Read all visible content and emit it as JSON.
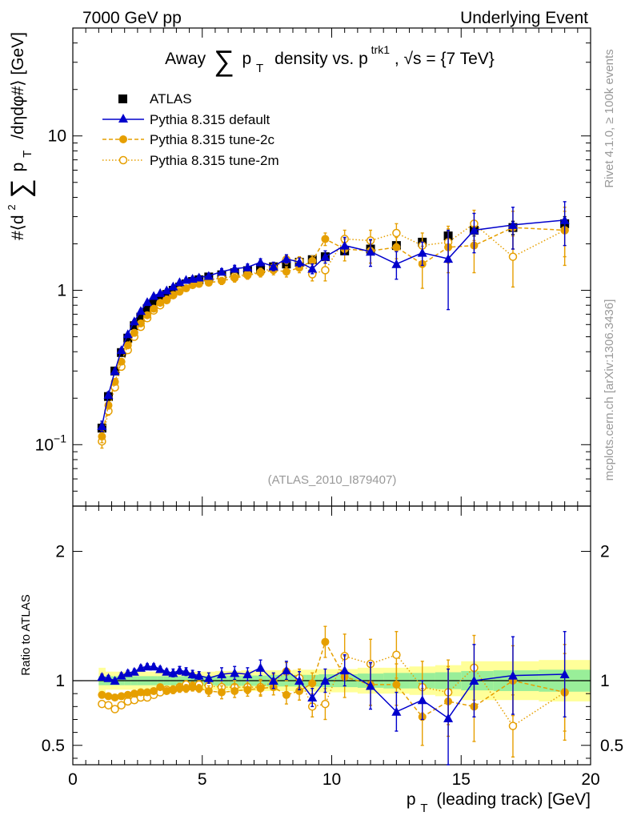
{
  "header": {
    "left": "7000 GeV pp",
    "right": "Underlying Event"
  },
  "side_labels": {
    "rivet": "Rivet 4.1.0, ≥ 100k events",
    "mcplots": "mcplots.cern.ch [arXiv:1306.3436]"
  },
  "colors": {
    "atlas": "#000000",
    "default": "#0000cc",
    "tune2c": "#e69f00",
    "tune2m": "#e69f00",
    "band_outer": "#ffff99",
    "band_inner": "#99ee99",
    "watermark": "#999999"
  },
  "chart_data": [
    {
      "type": "scatter",
      "panel": "main",
      "title": "Away ∑ pT density vs. pT trk1, √s = {7 TeV}",
      "title_parts": {
        "prefix": "Away",
        "sum": "∑",
        "p": "p",
        "sub": "T",
        "mid": "density vs. p",
        "sup": "trk1",
        "suffix": ", √s = {7 TeV}"
      },
      "ylabel": "#⟨d² ∑ pT /dηdφ#⟩ [GeV]",
      "ylabel_parts": {
        "a": "#⟨d",
        "sup": "2",
        "sum": "∑",
        "p": "p",
        "sub": "T",
        "b": "/dηdφ#⟩ [GeV]"
      },
      "yscale": "log",
      "ylim": [
        0.04,
        50
      ],
      "xlim": [
        0,
        20
      ],
      "yticks": [
        {
          "v": 0.1,
          "base": "10",
          "exp": "−1"
        },
        {
          "v": 1,
          "base": "1",
          "exp": ""
        },
        {
          "v": 10,
          "base": "10",
          "exp": ""
        }
      ],
      "watermark": "(ATLAS_2010_I879407)",
      "legend": [
        "ATLAS",
        "Pythia 8.315 default",
        "Pythia 8.315 tune-2c",
        "Pythia 8.315 tune-2m"
      ],
      "x": [
        1.125,
        1.375,
        1.625,
        1.875,
        2.125,
        2.375,
        2.625,
        2.875,
        3.125,
        3.375,
        3.625,
        3.875,
        4.125,
        4.375,
        4.625,
        4.875,
        5.25,
        5.75,
        6.25,
        6.75,
        7.25,
        7.75,
        8.25,
        8.75,
        9.25,
        9.75,
        10.5,
        11.5,
        12.5,
        13.5,
        14.5,
        15.5,
        17.0,
        19.0
      ],
      "series": [
        {
          "name": "ATLAS",
          "style": "square",
          "values": [
            0.128,
            0.205,
            0.3,
            0.395,
            0.49,
            0.59,
            0.67,
            0.76,
            0.83,
            0.88,
            0.94,
            1.0,
            1.05,
            1.1,
            1.14,
            1.17,
            1.22,
            1.26,
            1.3,
            1.34,
            1.38,
            1.42,
            1.48,
            1.52,
            1.58,
            1.65,
            1.8,
            1.85,
            1.95,
            2.05,
            2.25,
            2.45,
            2.55,
            2.7
          ],
          "errors": [
            0.01,
            0.01,
            0.01,
            0.01,
            0.01,
            0.01,
            0.01,
            0.01,
            0.01,
            0.01,
            0.01,
            0.01,
            0.02,
            0.02,
            0.02,
            0.02,
            0.02,
            0.03,
            0.03,
            0.03,
            0.03,
            0.04,
            0.04,
            0.05,
            0.05,
            0.06,
            0.07,
            0.08,
            0.1,
            0.12,
            0.15,
            0.2,
            0.25,
            0.3
          ]
        },
        {
          "name": "Pythia 8.315 default",
          "style": "triangle",
          "values": [
            0.132,
            0.21,
            0.3,
            0.41,
            0.52,
            0.63,
            0.735,
            0.84,
            0.92,
            0.96,
            1.0,
            1.06,
            1.13,
            1.17,
            1.19,
            1.21,
            1.24,
            1.32,
            1.38,
            1.41,
            1.52,
            1.43,
            1.6,
            1.52,
            1.38,
            1.65,
            1.95,
            1.78,
            1.48,
            1.75,
            1.6,
            2.45,
            2.65,
            2.85
          ],
          "errors": [
            0.01,
            0.01,
            0.01,
            0.01,
            0.01,
            0.01,
            0.02,
            0.02,
            0.02,
            0.02,
            0.02,
            0.03,
            0.03,
            0.03,
            0.04,
            0.04,
            0.05,
            0.06,
            0.07,
            0.07,
            0.08,
            0.09,
            0.1,
            0.1,
            0.1,
            0.15,
            0.25,
            0.35,
            0.3,
            0.3,
            0.85,
            0.7,
            0.8,
            0.9
          ]
        },
        {
          "name": "Pythia 8.315 tune-2c",
          "style": "circle-filled",
          "values": [
            0.113,
            0.18,
            0.255,
            0.345,
            0.44,
            0.53,
            0.61,
            0.69,
            0.76,
            0.83,
            0.86,
            0.93,
            0.98,
            1.03,
            1.08,
            1.1,
            1.12,
            1.15,
            1.2,
            1.25,
            1.3,
            1.35,
            1.32,
            1.4,
            1.55,
            2.15,
            1.85,
            1.8,
            1.9,
            1.48,
            1.9,
            1.95,
            2.55,
            2.45
          ],
          "errors": [
            0.01,
            0.01,
            0.01,
            0.01,
            0.01,
            0.01,
            0.01,
            0.02,
            0.02,
            0.02,
            0.02,
            0.03,
            0.03,
            0.03,
            0.04,
            0.04,
            0.05,
            0.06,
            0.07,
            0.07,
            0.08,
            0.09,
            0.1,
            0.1,
            0.12,
            0.2,
            0.3,
            0.3,
            0.3,
            0.45,
            0.6,
            0.65,
            0.7,
            1.0
          ]
        },
        {
          "name": "Pythia 8.315 tune-2m",
          "style": "circle-open",
          "values": [
            0.105,
            0.165,
            0.235,
            0.32,
            0.41,
            0.5,
            0.58,
            0.66,
            0.74,
            0.8,
            0.87,
            0.93,
            1.0,
            1.07,
            1.1,
            1.14,
            1.17,
            1.2,
            1.23,
            1.27,
            1.31,
            1.4,
            1.58,
            1.55,
            1.27,
            1.35,
            2.15,
            2.1,
            2.35,
            1.95,
            2.05,
            2.7,
            1.65,
            2.45
          ],
          "errors": [
            0.01,
            0.01,
            0.01,
            0.01,
            0.01,
            0.01,
            0.01,
            0.02,
            0.02,
            0.02,
            0.02,
            0.03,
            0.03,
            0.03,
            0.04,
            0.04,
            0.05,
            0.06,
            0.07,
            0.07,
            0.08,
            0.09,
            0.1,
            0.1,
            0.12,
            0.2,
            0.3,
            0.35,
            0.35,
            0.4,
            0.55,
            0.6,
            0.6,
            0.8
          ]
        }
      ]
    },
    {
      "type": "scatter",
      "panel": "ratio",
      "ylabel": "Ratio to ATLAS",
      "xlabel": "pT (leading track) [GeV]",
      "xlabel_parts": {
        "p": "p",
        "sub": "T",
        "rest": "(leading track) [GeV]"
      },
      "xlim": [
        0,
        20
      ],
      "ylim": [
        0.35,
        2.35
      ],
      "xticks": [
        0,
        5,
        10,
        15,
        20
      ],
      "yticks": [
        0.5,
        1,
        2
      ],
      "ytick_labels": [
        "0.5",
        "1",
        "2"
      ],
      "band_inner": [
        0.035,
        0.035,
        0.035,
        0.035,
        0.035,
        0.035,
        0.035,
        0.035,
        0.035,
        0.035,
        0.035,
        0.035,
        0.035,
        0.035,
        0.035,
        0.035,
        0.035,
        0.04,
        0.04,
        0.04,
        0.04,
        0.045,
        0.045,
        0.045,
        0.045,
        0.05,
        0.05,
        0.055,
        0.06,
        0.06,
        0.065,
        0.075,
        0.08,
        0.085
      ],
      "band_outer": [
        0.1,
        0.07,
        0.07,
        0.07,
        0.07,
        0.07,
        0.07,
        0.07,
        0.07,
        0.07,
        0.07,
        0.07,
        0.07,
        0.07,
        0.07,
        0.07,
        0.07,
        0.075,
        0.075,
        0.08,
        0.08,
        0.08,
        0.08,
        0.085,
        0.085,
        0.09,
        0.09,
        0.1,
        0.1,
        0.11,
        0.12,
        0.15,
        0.15,
        0.16
      ],
      "series": [
        {
          "name": "Pythia 8.315 default",
          "style": "triangle",
          "values": [
            1.03,
            1.02,
            1.0,
            1.04,
            1.06,
            1.07,
            1.1,
            1.11,
            1.11,
            1.09,
            1.07,
            1.06,
            1.08,
            1.07,
            1.05,
            1.04,
            1.02,
            1.05,
            1.06,
            1.05,
            1.1,
            1.0,
            1.08,
            1.0,
            0.87,
            1.0,
            1.08,
            0.96,
            0.76,
            0.85,
            0.71,
            1.0,
            1.04,
            1.05
          ],
          "errors": [
            0.02,
            0.02,
            0.02,
            0.02,
            0.02,
            0.02,
            0.02,
            0.02,
            0.02,
            0.02,
            0.02,
            0.03,
            0.03,
            0.03,
            0.03,
            0.03,
            0.04,
            0.05,
            0.05,
            0.05,
            0.06,
            0.06,
            0.07,
            0.07,
            0.07,
            0.09,
            0.12,
            0.18,
            0.15,
            0.15,
            0.38,
            0.28,
            0.3,
            0.33
          ]
        },
        {
          "name": "Pythia 8.315 tune-2c",
          "style": "circle-filled",
          "values": [
            0.89,
            0.88,
            0.87,
            0.88,
            0.89,
            0.9,
            0.91,
            0.91,
            0.92,
            0.95,
            0.92,
            0.93,
            0.94,
            0.94,
            0.95,
            0.94,
            0.92,
            0.91,
            0.92,
            0.93,
            0.94,
            0.95,
            0.89,
            0.92,
            0.98,
            1.3,
            1.03,
            0.97,
            0.97,
            0.72,
            0.84,
            0.8,
            1.0,
            0.91
          ],
          "errors": [
            0.02,
            0.02,
            0.02,
            0.02,
            0.02,
            0.02,
            0.02,
            0.02,
            0.02,
            0.02,
            0.02,
            0.03,
            0.03,
            0.03,
            0.03,
            0.03,
            0.04,
            0.05,
            0.05,
            0.05,
            0.06,
            0.06,
            0.07,
            0.07,
            0.08,
            0.12,
            0.16,
            0.16,
            0.16,
            0.22,
            0.27,
            0.27,
            0.27,
            0.37
          ]
        },
        {
          "name": "Pythia 8.315 tune-2m",
          "style": "circle-open",
          "values": [
            0.82,
            0.81,
            0.78,
            0.81,
            0.84,
            0.85,
            0.87,
            0.87,
            0.89,
            0.91,
            0.93,
            0.93,
            0.95,
            0.97,
            0.96,
            0.97,
            0.96,
            0.95,
            0.95,
            0.95,
            0.95,
            0.99,
            1.07,
            1.02,
            0.8,
            0.82,
            1.19,
            1.13,
            1.2,
            0.95,
            0.91,
            1.1,
            0.65,
            0.91
          ],
          "errors": [
            0.02,
            0.02,
            0.02,
            0.02,
            0.02,
            0.02,
            0.02,
            0.02,
            0.02,
            0.02,
            0.02,
            0.03,
            0.03,
            0.03,
            0.03,
            0.03,
            0.04,
            0.05,
            0.05,
            0.05,
            0.06,
            0.06,
            0.07,
            0.07,
            0.08,
            0.12,
            0.17,
            0.19,
            0.18,
            0.2,
            0.25,
            0.25,
            0.24,
            0.3
          ]
        }
      ]
    }
  ]
}
